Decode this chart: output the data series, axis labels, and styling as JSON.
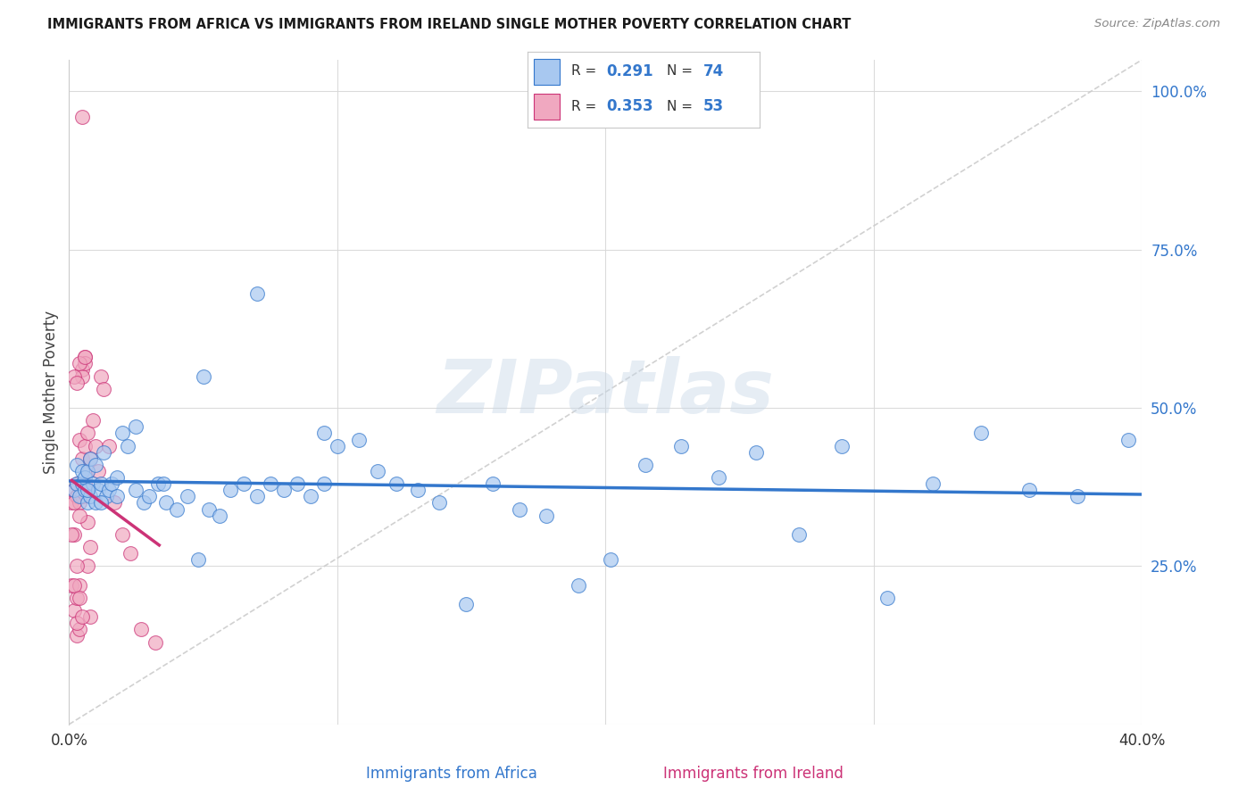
{
  "title": "IMMIGRANTS FROM AFRICA VS IMMIGRANTS FROM IRELAND SINGLE MOTHER POVERTY CORRELATION CHART",
  "source": "Source: ZipAtlas.com",
  "xlabel_africa": "Immigrants from Africa",
  "xlabel_ireland": "Immigrants from Ireland",
  "ylabel": "Single Mother Poverty",
  "xlim": [
    0.0,
    0.4
  ],
  "ylim": [
    0.0,
    1.05
  ],
  "R_africa": 0.291,
  "N_africa": 74,
  "R_ireland": 0.353,
  "N_ireland": 53,
  "color_africa": "#a8c8f0",
  "color_ireland": "#f0a8c0",
  "trendline_africa_color": "#3377cc",
  "trendline_ireland_color": "#cc3377",
  "diagonal_color": "#cccccc",
  "background_color": "#ffffff",
  "watermark": "ZIPatlas",
  "africa_x": [
    0.002,
    0.003,
    0.003,
    0.004,
    0.005,
    0.005,
    0.006,
    0.006,
    0.007,
    0.007,
    0.008,
    0.008,
    0.009,
    0.01,
    0.01,
    0.011,
    0.012,
    0.013,
    0.014,
    0.015,
    0.016,
    0.018,
    0.02,
    0.022,
    0.025,
    0.028,
    0.03,
    0.033,
    0.036,
    0.04,
    0.044,
    0.048,
    0.052,
    0.056,
    0.06,
    0.065,
    0.07,
    0.075,
    0.08,
    0.085,
    0.09,
    0.095,
    0.1,
    0.108,
    0.115,
    0.122,
    0.13,
    0.138,
    0.148,
    0.158,
    0.168,
    0.178,
    0.19,
    0.202,
    0.215,
    0.228,
    0.242,
    0.256,
    0.272,
    0.288,
    0.305,
    0.322,
    0.34,
    0.358,
    0.376,
    0.395,
    0.007,
    0.012,
    0.018,
    0.025,
    0.035,
    0.05,
    0.07,
    0.095
  ],
  "africa_y": [
    0.37,
    0.38,
    0.41,
    0.36,
    0.38,
    0.4,
    0.37,
    0.39,
    0.35,
    0.4,
    0.36,
    0.42,
    0.38,
    0.35,
    0.41,
    0.37,
    0.38,
    0.43,
    0.36,
    0.37,
    0.38,
    0.36,
    0.46,
    0.44,
    0.47,
    0.35,
    0.36,
    0.38,
    0.35,
    0.34,
    0.36,
    0.26,
    0.34,
    0.33,
    0.37,
    0.38,
    0.36,
    0.38,
    0.37,
    0.38,
    0.36,
    0.38,
    0.44,
    0.45,
    0.4,
    0.38,
    0.37,
    0.35,
    0.19,
    0.38,
    0.34,
    0.33,
    0.22,
    0.26,
    0.41,
    0.44,
    0.39,
    0.43,
    0.3,
    0.44,
    0.2,
    0.38,
    0.46,
    0.37,
    0.36,
    0.45,
    0.37,
    0.35,
    0.39,
    0.37,
    0.38,
    0.55,
    0.68,
    0.46
  ],
  "ireland_x": [
    0.001,
    0.001,
    0.002,
    0.002,
    0.002,
    0.003,
    0.003,
    0.003,
    0.003,
    0.004,
    0.004,
    0.004,
    0.004,
    0.005,
    0.005,
    0.005,
    0.005,
    0.006,
    0.006,
    0.006,
    0.006,
    0.007,
    0.007,
    0.007,
    0.008,
    0.008,
    0.009,
    0.01,
    0.011,
    0.012,
    0.013,
    0.015,
    0.017,
    0.02,
    0.023,
    0.027,
    0.032,
    0.001,
    0.002,
    0.002,
    0.003,
    0.003,
    0.004,
    0.004,
    0.005,
    0.005,
    0.006,
    0.007,
    0.008,
    0.002,
    0.003,
    0.004,
    0.005
  ],
  "ireland_y": [
    0.35,
    0.22,
    0.37,
    0.3,
    0.18,
    0.36,
    0.38,
    0.14,
    0.2,
    0.35,
    0.45,
    0.15,
    0.22,
    0.42,
    0.36,
    0.56,
    0.55,
    0.44,
    0.38,
    0.58,
    0.57,
    0.46,
    0.4,
    0.25,
    0.42,
    0.17,
    0.48,
    0.44,
    0.4,
    0.55,
    0.53,
    0.44,
    0.35,
    0.3,
    0.27,
    0.15,
    0.13,
    0.3,
    0.22,
    0.55,
    0.54,
    0.16,
    0.2,
    0.57,
    0.17,
    0.38,
    0.58,
    0.32,
    0.28,
    0.35,
    0.25,
    0.33,
    0.96
  ]
}
